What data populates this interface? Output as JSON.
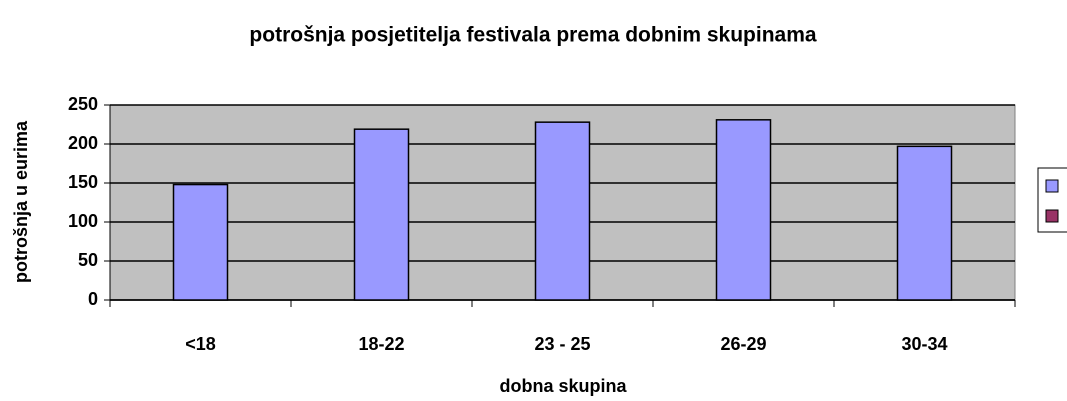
{
  "chart_data": {
    "type": "bar",
    "title": "potrošnja posjetitelja festivala prema dobnim skupinama",
    "x_label": "dobna skupina",
    "y_label": "potrošnja u eurima",
    "categories": [
      "<18",
      "18-22",
      "23 - 25",
      "26-29",
      "30-34"
    ],
    "series": [
      {
        "color": "#9999ff",
        "values": [
          148,
          219,
          228,
          231,
          197
        ]
      },
      {
        "color": "#993366",
        "values": [
          null,
          null,
          null,
          null,
          null
        ]
      }
    ],
    "ylim": [
      0,
      250
    ],
    "yticks": [
      0,
      50,
      100,
      150,
      200,
      250
    ],
    "grid": true,
    "legend": "right"
  }
}
